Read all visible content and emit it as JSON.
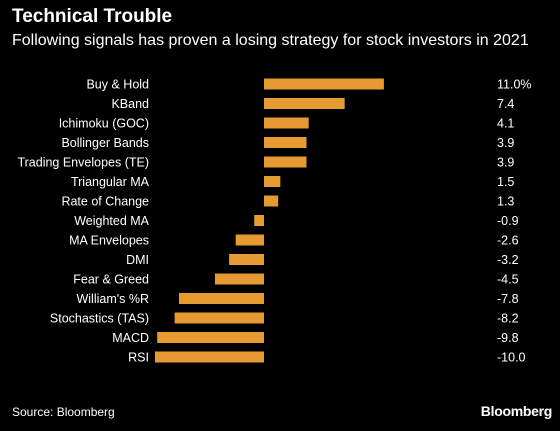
{
  "header": {
    "title": "Technical Trouble",
    "subtitle": "Following signals has proven a losing strategy for stock investors in 2021"
  },
  "footer": {
    "source": "Source: Bloomberg",
    "brand": "Bloomberg"
  },
  "colors": {
    "background": "#000000",
    "bar": "#e69a32",
    "text": "#ffffff"
  },
  "chart_data": {
    "type": "bar",
    "orientation": "horizontal",
    "categories": [
      "Buy & Hold",
      "KBand",
      "Ichimoku (GOC)",
      "Bollinger Bands",
      "Trading Envelopes (TE)",
      "Triangular MA",
      "Rate of Change",
      "Weighted MA",
      "MA Envelopes",
      "DMI",
      "Fear & Greed",
      "William's %R",
      "Stochastics (TAS)",
      "MACD",
      "RSI"
    ],
    "values": [
      11.0,
      7.4,
      4.1,
      3.9,
      3.9,
      1.5,
      1.3,
      -0.9,
      -2.6,
      -3.2,
      -4.5,
      -7.8,
      -8.2,
      -9.8,
      -10.0
    ],
    "value_labels": [
      "11.0%",
      "7.4",
      "4.1",
      "3.9",
      "3.9",
      "1.5",
      "1.3",
      "-0.9",
      "-2.6",
      "-3.2",
      "-4.5",
      "-7.8",
      "-8.2",
      "-9.8",
      "-10.0"
    ],
    "xlim": [
      -10.0,
      11.0
    ],
    "grid": false,
    "legend": "none"
  }
}
